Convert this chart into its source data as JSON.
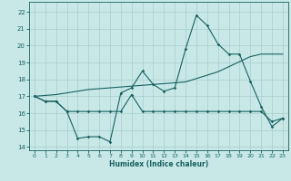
{
  "xlabel": "Humidex (Indice chaleur)",
  "xlim": [
    -0.5,
    23.5
  ],
  "ylim": [
    13.8,
    22.6
  ],
  "yticks": [
    14,
    15,
    16,
    17,
    18,
    19,
    20,
    21,
    22
  ],
  "xticks": [
    0,
    1,
    2,
    3,
    4,
    5,
    6,
    7,
    8,
    9,
    10,
    11,
    12,
    13,
    14,
    15,
    16,
    17,
    18,
    19,
    20,
    21,
    22,
    23
  ],
  "bg_color": "#c8e8e8",
  "grid_color": "#a8cccc",
  "line_color": "#1a6060",
  "line1_x": [
    0,
    1,
    2,
    3,
    4,
    5,
    6,
    7,
    8,
    9,
    10,
    11,
    12,
    13,
    14,
    15,
    16,
    17,
    18,
    19,
    20,
    21,
    22,
    23
  ],
  "line1_y": [
    17.0,
    16.7,
    16.7,
    16.1,
    14.5,
    14.6,
    14.6,
    14.3,
    17.2,
    17.5,
    18.5,
    17.7,
    17.3,
    17.5,
    19.8,
    21.8,
    21.2,
    20.1,
    19.5,
    19.5,
    17.9,
    16.4,
    15.2,
    15.7
  ],
  "line2_x": [
    0,
    1,
    2,
    3,
    4,
    5,
    6,
    7,
    8,
    9,
    10,
    11,
    12,
    13,
    14,
    15,
    16,
    17,
    18,
    19,
    20,
    21,
    22,
    23
  ],
  "line2_y": [
    17.0,
    16.7,
    16.7,
    16.1,
    16.1,
    16.1,
    16.1,
    16.1,
    16.1,
    17.1,
    16.1,
    16.1,
    16.1,
    16.1,
    16.1,
    16.1,
    16.1,
    16.1,
    16.1,
    16.1,
    16.1,
    16.1,
    15.5,
    15.7
  ],
  "line3_x": [
    0,
    1,
    2,
    3,
    4,
    5,
    6,
    7,
    8,
    9,
    10,
    11,
    12,
    13,
    14,
    15,
    16,
    17,
    18,
    19,
    20,
    21,
    22,
    23
  ],
  "line3_y": [
    17.0,
    17.05,
    17.1,
    17.2,
    17.3,
    17.4,
    17.45,
    17.5,
    17.55,
    17.6,
    17.65,
    17.7,
    17.75,
    17.8,
    17.85,
    18.05,
    18.25,
    18.45,
    18.75,
    19.05,
    19.35,
    19.5,
    19.5,
    19.5
  ]
}
